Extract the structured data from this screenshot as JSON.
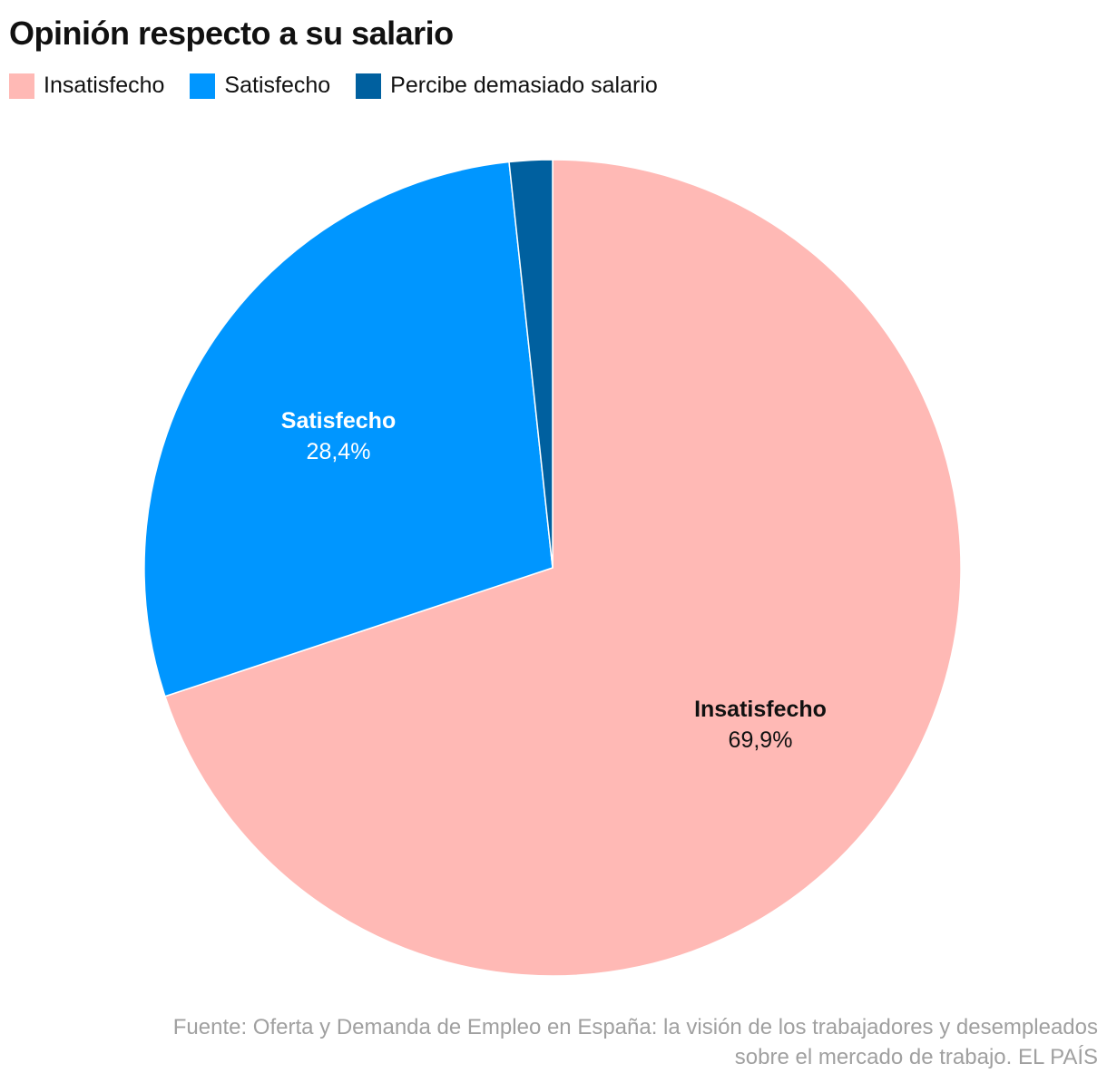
{
  "chart_data": {
    "type": "pie",
    "title": "Opinión respecto a su salario",
    "legend_position": "top-left",
    "start_angle": "top, clockwise",
    "slices": [
      {
        "name": "Insatisfecho",
        "value": 69.9,
        "label_value": "69,9%",
        "color": "#ffb9b5",
        "label_color": "#111111"
      },
      {
        "name": "Satisfecho",
        "value": 28.4,
        "label_value": "28,4%",
        "color": "#0096ff",
        "label_color": "#ffffff"
      },
      {
        "name": "Percibe demasiado salario",
        "value": 1.7,
        "color": "#00609f"
      }
    ]
  },
  "source": {
    "line1": "Fuente: Oferta y Demanda de Empleo en España: la visión de los trabajadores y desempleados",
    "line2": "sobre el mercado de trabajo. EL PAÍS"
  }
}
